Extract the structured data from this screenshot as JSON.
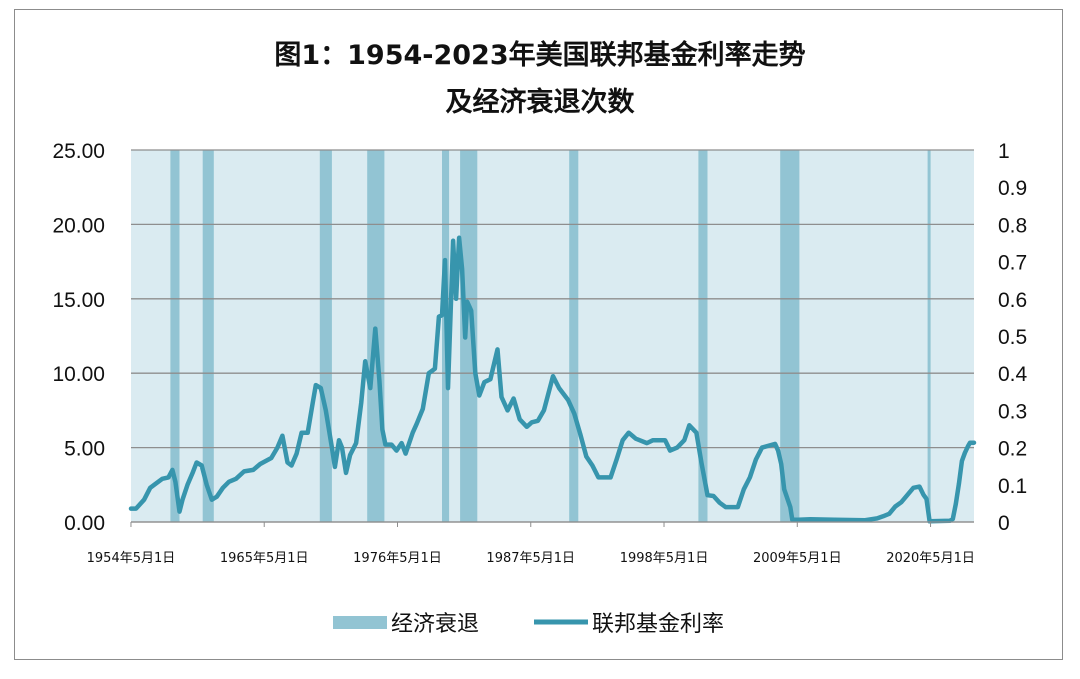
{
  "chart_data": {
    "type": "line",
    "title_line1": "图1：1954-2023年美国联邦基金利率走势",
    "title_line2": "及经济衰退次数",
    "x_range": [
      "1954-05",
      "2023-12"
    ],
    "x_tick_labels": [
      "1954年5月1日",
      "1965年5月1日",
      "1976年5月1日",
      "1987年5月1日",
      "1998年5月1日",
      "2009年5月1日",
      "2020年5月1日"
    ],
    "x_tick_years": [
      1954.33,
      1965.33,
      1976.33,
      1987.33,
      1998.33,
      2009.33,
      2020.33
    ],
    "y_left": {
      "ylim": [
        0,
        25
      ],
      "tick_labels": [
        "0.00",
        "5.00",
        "10.00",
        "15.00",
        "20.00",
        "25.00"
      ],
      "tick_values": [
        0,
        5,
        10,
        15,
        20,
        25
      ]
    },
    "y_right": {
      "ylim": [
        0,
        1
      ],
      "tick_labels": [
        "0",
        "0.1",
        "0.2",
        "0.3",
        "0.4",
        "0.5",
        "0.6",
        "0.7",
        "0.8",
        "0.9",
        "1"
      ],
      "tick_values": [
        0,
        0.1,
        0.2,
        0.3,
        0.4,
        0.5,
        0.6,
        0.7,
        0.8,
        0.9,
        1
      ]
    },
    "grid": "horizontal",
    "legend_position": "bottom",
    "colors": {
      "recession": "#92c4d3",
      "line": "#3795ad",
      "plot_bg": "#daebf1",
      "grid": "#8e8e8e"
    },
    "series": [
      {
        "name": "经济衰退",
        "type": "bar",
        "axis": "right",
        "periods": [
          [
            "1957-08",
            "1958-04"
          ],
          [
            "1960-04",
            "1961-02"
          ],
          [
            "1969-12",
            "1970-11"
          ],
          [
            "1973-11",
            "1975-03"
          ],
          [
            "1980-01",
            "1980-07"
          ],
          [
            "1981-07",
            "1982-11"
          ],
          [
            "1990-07",
            "1991-03"
          ],
          [
            "2001-03",
            "2001-11"
          ],
          [
            "2007-12",
            "2009-06"
          ],
          [
            "2020-02",
            "2020-04"
          ]
        ],
        "value": 1
      },
      {
        "name": "联邦基金利率",
        "type": "line",
        "axis": "left",
        "points": [
          [
            "1954-05",
            0.9
          ],
          [
            "1954-10",
            0.9
          ],
          [
            "1955-06",
            1.5
          ],
          [
            "1955-12",
            2.3
          ],
          [
            "1956-06",
            2.6
          ],
          [
            "1956-12",
            2.9
          ],
          [
            "1957-06",
            3.0
          ],
          [
            "1957-10",
            3.5
          ],
          [
            "1958-01",
            2.7
          ],
          [
            "1958-05",
            0.7
          ],
          [
            "1958-08",
            1.5
          ],
          [
            "1959-01",
            2.5
          ],
          [
            "1959-06",
            3.3
          ],
          [
            "1959-10",
            4.0
          ],
          [
            "1960-03",
            3.8
          ],
          [
            "1960-08",
            2.5
          ],
          [
            "1961-01",
            1.5
          ],
          [
            "1961-06",
            1.7
          ],
          [
            "1961-12",
            2.3
          ],
          [
            "1962-06",
            2.7
          ],
          [
            "1963-01",
            2.9
          ],
          [
            "1963-09",
            3.4
          ],
          [
            "1964-06",
            3.5
          ],
          [
            "1965-01",
            3.9
          ],
          [
            "1965-12",
            4.3
          ],
          [
            "1966-06",
            5.0
          ],
          [
            "1966-11",
            5.8
          ],
          [
            "1967-04",
            4.0
          ],
          [
            "1967-08",
            3.8
          ],
          [
            "1968-01",
            4.6
          ],
          [
            "1968-06",
            6.0
          ],
          [
            "1968-12",
            6.0
          ],
          [
            "1969-05",
            8.0
          ],
          [
            "1969-08",
            9.2
          ],
          [
            "1970-01",
            9.0
          ],
          [
            "1970-06",
            7.5
          ],
          [
            "1970-12",
            5.0
          ],
          [
            "1971-03",
            3.7
          ],
          [
            "1971-07",
            5.5
          ],
          [
            "1971-10",
            5.0
          ],
          [
            "1972-02",
            3.3
          ],
          [
            "1972-06",
            4.5
          ],
          [
            "1972-12",
            5.3
          ],
          [
            "1973-05",
            8.0
          ],
          [
            "1973-09",
            10.8
          ],
          [
            "1974-02",
            9.0
          ],
          [
            "1974-07",
            13.0
          ],
          [
            "1974-11",
            9.5
          ],
          [
            "1975-02",
            6.2
          ],
          [
            "1975-05",
            5.2
          ],
          [
            "1975-11",
            5.2
          ],
          [
            "1976-04",
            4.8
          ],
          [
            "1976-09",
            5.3
          ],
          [
            "1977-01",
            4.6
          ],
          [
            "1977-08",
            6.0
          ],
          [
            "1977-12",
            6.6
          ],
          [
            "1978-06",
            7.6
          ],
          [
            "1978-12",
            10.0
          ],
          [
            "1979-06",
            10.3
          ],
          [
            "1979-10",
            13.8
          ],
          [
            "1980-01",
            13.9
          ],
          [
            "1980-04",
            17.6
          ],
          [
            "1980-07",
            9.0
          ],
          [
            "1980-12",
            18.9
          ],
          [
            "1981-03",
            15.0
          ],
          [
            "1981-06",
            19.1
          ],
          [
            "1981-09",
            17.0
          ],
          [
            "1981-12",
            12.4
          ],
          [
            "1982-02",
            14.8
          ],
          [
            "1982-06",
            14.2
          ],
          [
            "1982-10",
            10.0
          ],
          [
            "1983-02",
            8.5
          ],
          [
            "1983-07",
            9.4
          ],
          [
            "1984-01",
            9.6
          ],
          [
            "1984-08",
            11.6
          ],
          [
            "1984-12",
            8.4
          ],
          [
            "1985-06",
            7.5
          ],
          [
            "1985-12",
            8.3
          ],
          [
            "1986-06",
            6.9
          ],
          [
            "1987-01",
            6.4
          ],
          [
            "1987-06",
            6.7
          ],
          [
            "1987-12",
            6.8
          ],
          [
            "1988-06",
            7.5
          ],
          [
            "1989-03",
            9.8
          ],
          [
            "1989-09",
            9.0
          ],
          [
            "1990-06",
            8.2
          ],
          [
            "1990-12",
            7.3
          ],
          [
            "1991-06",
            5.9
          ],
          [
            "1991-12",
            4.4
          ],
          [
            "1992-06",
            3.8
          ],
          [
            "1992-12",
            3.0
          ],
          [
            "1993-12",
            3.0
          ],
          [
            "1994-06",
            4.2
          ],
          [
            "1994-12",
            5.5
          ],
          [
            "1995-06",
            6.0
          ],
          [
            "1996-01",
            5.6
          ],
          [
            "1996-12",
            5.3
          ],
          [
            "1997-06",
            5.5
          ],
          [
            "1998-06",
            5.5
          ],
          [
            "1998-11",
            4.8
          ],
          [
            "1999-06",
            5.0
          ],
          [
            "2000-01",
            5.5
          ],
          [
            "2000-06",
            6.5
          ],
          [
            "2001-01",
            6.0
          ],
          [
            "2001-06",
            4.0
          ],
          [
            "2001-12",
            1.8
          ],
          [
            "2002-06",
            1.75
          ],
          [
            "2002-12",
            1.3
          ],
          [
            "2003-06",
            1.0
          ],
          [
            "2004-06",
            1.0
          ],
          [
            "2004-12",
            2.2
          ],
          [
            "2005-06",
            3.0
          ],
          [
            "2005-12",
            4.2
          ],
          [
            "2006-06",
            5.0
          ],
          [
            "2007-07",
            5.25
          ],
          [
            "2007-10",
            4.8
          ],
          [
            "2008-01",
            3.9
          ],
          [
            "2008-04",
            2.2
          ],
          [
            "2008-10",
            1.0
          ],
          [
            "2008-12",
            0.15
          ],
          [
            "2009-06",
            0.15
          ],
          [
            "2010-06",
            0.18
          ],
          [
            "2012-06",
            0.15
          ],
          [
            "2014-12",
            0.12
          ],
          [
            "2015-12",
            0.24
          ],
          [
            "2016-06",
            0.38
          ],
          [
            "2016-12",
            0.55
          ],
          [
            "2017-06",
            1.04
          ],
          [
            "2017-12",
            1.33
          ],
          [
            "2018-06",
            1.82
          ],
          [
            "2018-12",
            2.3
          ],
          [
            "2019-06",
            2.38
          ],
          [
            "2019-10",
            1.83
          ],
          [
            "2020-01",
            1.55
          ],
          [
            "2020-04",
            0.05
          ],
          [
            "2021-12",
            0.08
          ],
          [
            "2022-03",
            0.2
          ],
          [
            "2022-06",
            1.21
          ],
          [
            "2022-09",
            2.56
          ],
          [
            "2022-12",
            4.1
          ],
          [
            "2023-03",
            4.65
          ],
          [
            "2023-06",
            5.08
          ],
          [
            "2023-08",
            5.33
          ],
          [
            "2023-12",
            5.33
          ]
        ]
      }
    ]
  }
}
